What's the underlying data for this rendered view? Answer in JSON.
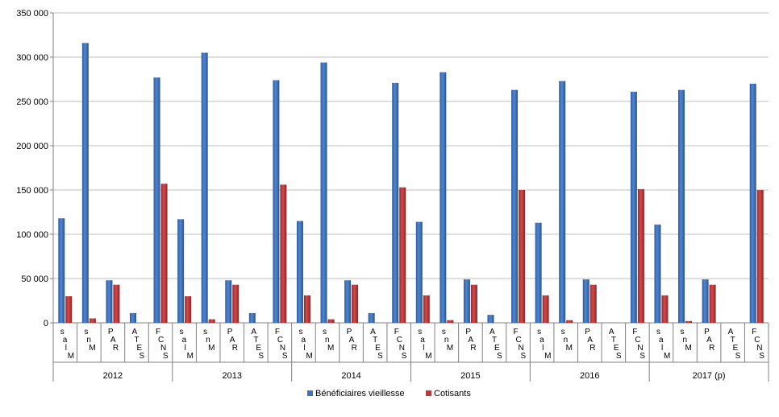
{
  "chart_data": {
    "type": "bar",
    "title": "",
    "xlabel": "",
    "ylabel": "",
    "ylim": [
      0,
      350000
    ],
    "yticks": [
      0,
      50000,
      100000,
      150000,
      200000,
      250000,
      300000,
      350000
    ],
    "ytick_labels": [
      "0",
      "50 000",
      "100 000",
      "150 000",
      "200 000",
      "250 000",
      "300 000",
      "350 000"
    ],
    "grid": "horizontal",
    "legend_position": "bottom",
    "groups": [
      "2012",
      "2013",
      "2014",
      "2015",
      "2016",
      "2017 (p)"
    ],
    "categories": [
      "MSA (salariés)",
      "MSA (non-salariés)",
      "RAFP",
      "SEITA",
      "CNAV / FSV"
    ],
    "category_labels": [
      [
        "s",
        "a",
        "l",
        "M"
      ],
      [
        "s",
        "n",
        "M"
      ],
      [
        "P",
        "A",
        "R"
      ],
      [
        "A",
        "T",
        "E",
        "S"
      ],
      [
        "F",
        "C",
        "N",
        "S"
      ]
    ],
    "series": [
      {
        "name": "Bénéficiaires vieillesse",
        "color": "#3e73c1",
        "values": [
          [
            118000,
            316000,
            48000,
            11000,
            277000
          ],
          [
            117000,
            305000,
            48000,
            11000,
            274000
          ],
          [
            115000,
            294000,
            48000,
            11000,
            271000
          ],
          [
            114000,
            283000,
            49000,
            9000,
            263000
          ],
          [
            113000,
            273000,
            49000,
            0,
            261000
          ],
          [
            111000,
            263000,
            49000,
            0,
            270000
          ]
        ]
      },
      {
        "name": "Cotisants",
        "color": "#c0393a",
        "values": [
          [
            30000,
            5000,
            43000,
            0,
            157000
          ],
          [
            30000,
            4000,
            43000,
            0,
            156000
          ],
          [
            31000,
            4000,
            43000,
            0,
            153000
          ],
          [
            31000,
            3000,
            43000,
            0,
            150000
          ],
          [
            31000,
            3000,
            43000,
            0,
            151000
          ],
          [
            31000,
            2000,
            43000,
            0,
            150000
          ]
        ]
      }
    ]
  }
}
